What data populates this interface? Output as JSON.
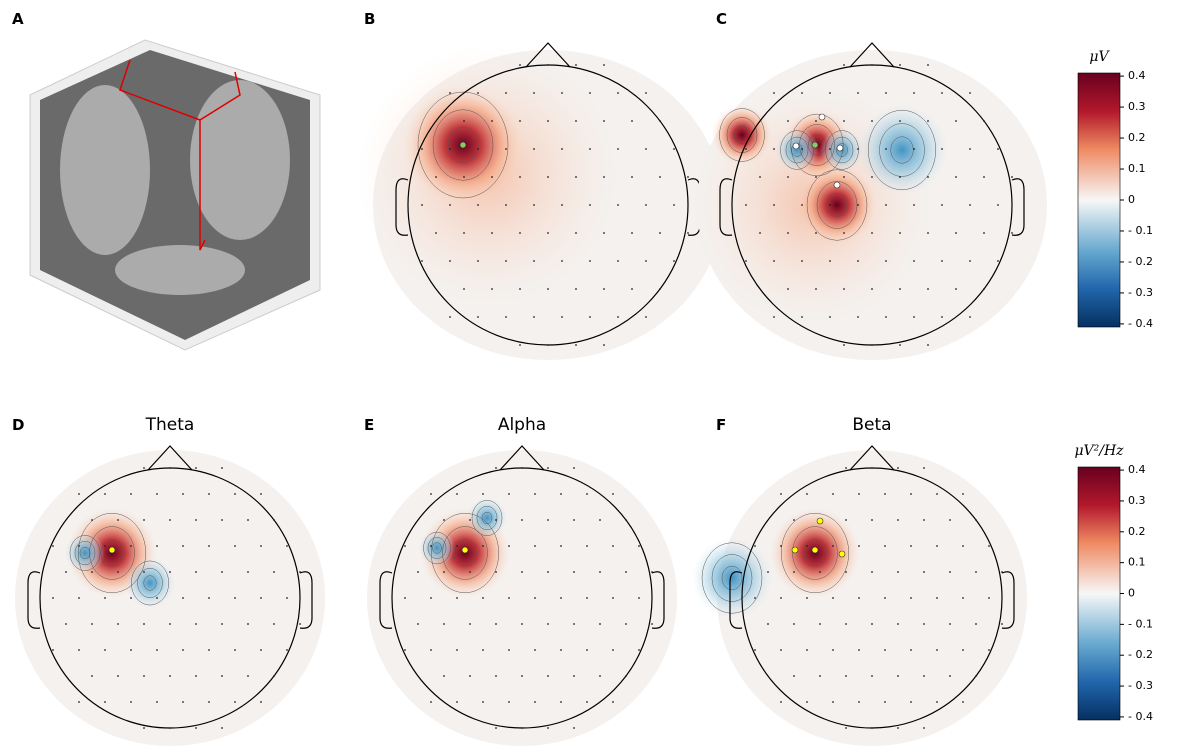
{
  "panels": [
    {
      "label": "A"
    },
    {
      "label": "B"
    },
    {
      "label": "C"
    },
    {
      "label": "D",
      "title": "Theta"
    },
    {
      "label": "E",
      "title": "Alpha"
    },
    {
      "label": "F",
      "title": "Beta"
    }
  ],
  "colorbars": [
    {
      "label": "μV",
      "ylim": [
        -0.41,
        0.41
      ],
      "ticks": [
        0.4,
        0.3,
        0.2,
        0.1,
        0,
        {
          "value": -0.1,
          "label": "- 0.1"
        },
        {
          "value": -0.2,
          "label": "- 0.2"
        },
        {
          "value": -0.3,
          "label": "- 0.3"
        },
        {
          "value": -0.4,
          "label": "- 0.4"
        }
      ]
    },
    {
      "label": "μV²/Hz",
      "ylim": [
        -0.41,
        0.41
      ],
      "ticks": [
        0.4,
        0.3,
        0.2,
        0.1,
        0,
        {
          "value": -0.1,
          "label": "- 0.1"
        },
        {
          "value": -0.2,
          "label": "- 0.2"
        },
        {
          "value": -0.3,
          "label": "- 0.3"
        },
        {
          "value": -0.4,
          "label": "- 0.4"
        }
      ]
    }
  ]
}
